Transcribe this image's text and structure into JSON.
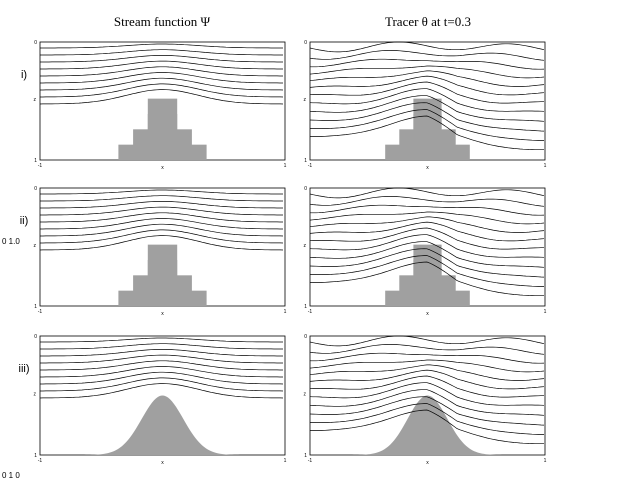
{
  "columns": [
    "Stream function Ψ",
    "Tracer θ at t=0.3"
  ],
  "rows": [
    "i)",
    "ii)",
    "iii)"
  ],
  "axis": {
    "x_label": "x",
    "z_label": "z",
    "x_ticks": [
      "-1",
      "1"
    ],
    "z_ticks": [
      "0",
      "1"
    ]
  },
  "fragments": {
    "side": "0 1.0",
    "bottom": "0 1 0"
  }
}
